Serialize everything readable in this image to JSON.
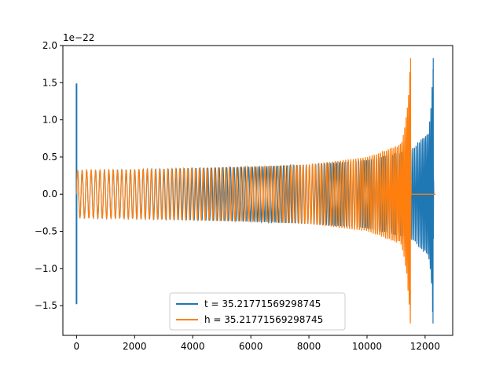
{
  "chart_data": {
    "type": "line",
    "title": "",
    "xlabel": "",
    "ylabel": "",
    "y_offset_label": "1e−22",
    "xlim": [
      -470,
      12950
    ],
    "ylim": [
      -1.9,
      2.0
    ],
    "x_ticks": [
      0,
      2000,
      4000,
      6000,
      8000,
      10000,
      12000
    ],
    "x_tick_labels": [
      "0",
      "2000",
      "4000",
      "6000",
      "8000",
      "10000",
      "12000"
    ],
    "y_ticks": [
      -1.5,
      -1.0,
      -0.5,
      0.0,
      0.5,
      1.0,
      1.5,
      2.0
    ],
    "y_tick_labels": [
      "−1.5",
      "−1.0",
      "−0.5",
      "0.0",
      "0.5",
      "1.0",
      "1.5",
      "2.0"
    ],
    "grid": false,
    "legend_position": "lower center",
    "series": [
      {
        "name": "t = 35.21771569298745",
        "color": "#1f77b4",
        "description": "chirp oscillation: spike at x=0, oscillation amplitude growing to merger near x=12280, then ringdown to 0",
        "x_start": 0,
        "x_merger": 12280,
        "x_end": 12350,
        "initial_spike": [
          1.49,
          -1.48
        ],
        "amplitude_samples": [
          [
            0,
            0.32
          ],
          [
            2000,
            0.33
          ],
          [
            4000,
            0.35
          ],
          [
            6000,
            0.37
          ],
          [
            8000,
            0.4
          ],
          [
            10000,
            0.46
          ],
          [
            11500,
            0.6
          ],
          [
            12000,
            0.8
          ],
          [
            12280,
            1.83
          ]
        ],
        "min_value": -1.74
      },
      {
        "name": "h = 35.21771569298745",
        "color": "#ff7f0e",
        "description": "same chirp shifted earlier: merger near x=11500, ringdown then flat 0 until 12350",
        "x_start": 0,
        "x_merger": 11500,
        "x_end": 12350,
        "amplitude_samples": [
          [
            0,
            0.32
          ],
          [
            2000,
            0.33
          ],
          [
            4000,
            0.35
          ],
          [
            6000,
            0.37
          ],
          [
            8000,
            0.4
          ],
          [
            10000,
            0.5
          ],
          [
            11000,
            0.65
          ],
          [
            11500,
            1.83
          ]
        ],
        "min_value": -1.74
      }
    ]
  }
}
